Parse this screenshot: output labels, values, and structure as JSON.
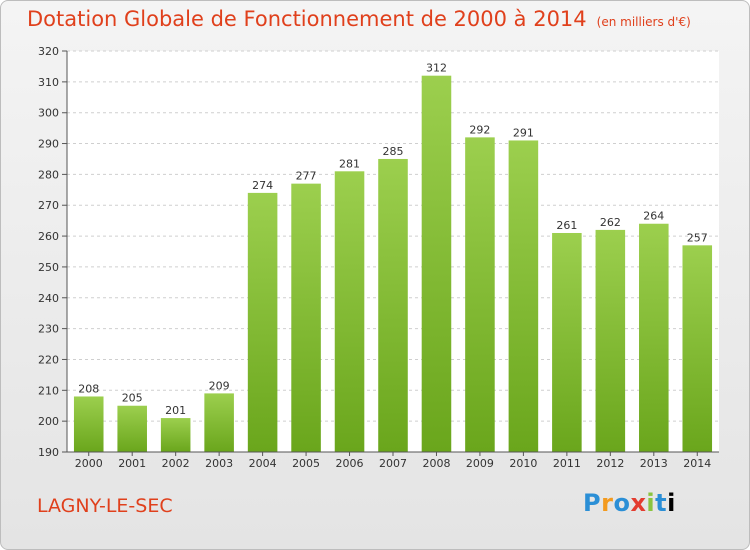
{
  "header": {
    "title": "Dotation Globale de Fonctionnement de 2000 à 2014",
    "unit": "(en milliers d'€)"
  },
  "footer": {
    "place": "LAGNY-LE-SEC",
    "logo_letters": [
      "P",
      "r",
      "o",
      "x",
      "i",
      "t",
      "i"
    ]
  },
  "colors": {
    "bar_top": "#9ccf4e",
    "bar_bottom": "#6aa61c",
    "title": "#e0401c"
  },
  "chart_data": {
    "type": "bar",
    "title": "Dotation Globale de Fonctionnement de 2000 à 2014",
    "subtitle": "(en milliers d'€)",
    "xlabel": "",
    "ylabel": "",
    "ylim": [
      190,
      320
    ],
    "yticks": [
      190,
      200,
      210,
      220,
      230,
      240,
      250,
      260,
      270,
      280,
      290,
      300,
      310,
      320
    ],
    "grid": true,
    "categories": [
      "2000",
      "2001",
      "2002",
      "2003",
      "2004",
      "2005",
      "2006",
      "2007",
      "2008",
      "2009",
      "2010",
      "2011",
      "2012",
      "2013",
      "2014"
    ],
    "values": [
      208,
      205,
      201,
      209,
      274,
      277,
      281,
      285,
      312,
      292,
      291,
      261,
      262,
      264,
      257
    ]
  }
}
